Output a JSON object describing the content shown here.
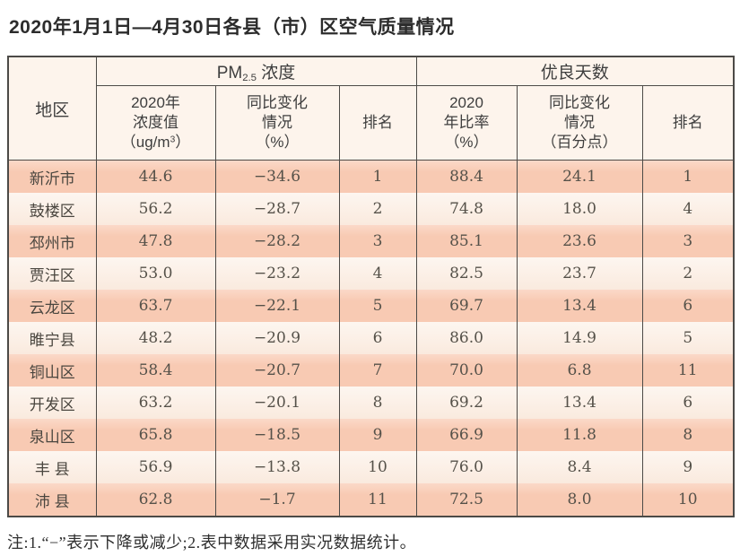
{
  "title": "2020年1月1日—4月30日各县（市）区空气质量情况",
  "colors": {
    "row_odd": "#f8cab3",
    "row_even": "#faeade",
    "header_bg": "#fdf4ec",
    "border": "#4c4a47"
  },
  "table": {
    "region_header": "地区",
    "pm_group": {
      "pre": "PM",
      "sub": "2.5",
      "post": " 浓度"
    },
    "days_group": "优良天数",
    "columns": {
      "pm_value": {
        "l1": "2020年",
        "l2": "浓度值",
        "l3_pre": "（ug/m",
        "l3_sup": "3",
        "l3_post": "）"
      },
      "pm_change": {
        "l1": "同比变化",
        "l2": "情况",
        "l3": "（%）"
      },
      "pm_rank": "排名",
      "days_ratio": {
        "l1": "2020",
        "l2": "年比率",
        "l3": "（%）"
      },
      "days_change": {
        "l1": "同比变化",
        "l2": "情况",
        "l3": "（百分点）"
      },
      "days_rank": "排名"
    },
    "rows": [
      {
        "region": "新沂市",
        "pm_value": "44.6",
        "pm_change": "−34.6",
        "pm_rank": "1",
        "days_ratio": "88.4",
        "days_change": "24.1",
        "days_rank": "1"
      },
      {
        "region": "鼓楼区",
        "pm_value": "56.2",
        "pm_change": "−28.7",
        "pm_rank": "2",
        "days_ratio": "74.8",
        "days_change": "18.0",
        "days_rank": "4"
      },
      {
        "region": "邳州市",
        "pm_value": "47.8",
        "pm_change": "−28.2",
        "pm_rank": "3",
        "days_ratio": "85.1",
        "days_change": "23.6",
        "days_rank": "3"
      },
      {
        "region": "贾汪区",
        "pm_value": "53.0",
        "pm_change": "−23.2",
        "pm_rank": "4",
        "days_ratio": "82.5",
        "days_change": "23.7",
        "days_rank": "2"
      },
      {
        "region": "云龙区",
        "pm_value": "63.7",
        "pm_change": "−22.1",
        "pm_rank": "5",
        "days_ratio": "69.7",
        "days_change": "13.4",
        "days_rank": "6"
      },
      {
        "region": "睢宁县",
        "pm_value": "48.2",
        "pm_change": "−20.9",
        "pm_rank": "6",
        "days_ratio": "86.0",
        "days_change": "14.9",
        "days_rank": "5"
      },
      {
        "region": "铜山区",
        "pm_value": "58.4",
        "pm_change": "−20.7",
        "pm_rank": "7",
        "days_ratio": "70.0",
        "days_change": "6.8",
        "days_rank": "11"
      },
      {
        "region": "开发区",
        "pm_value": "63.2",
        "pm_change": "−20.1",
        "pm_rank": "8",
        "days_ratio": "69.2",
        "days_change": "13.4",
        "days_rank": "6"
      },
      {
        "region": "泉山区",
        "pm_value": "65.8",
        "pm_change": "−18.5",
        "pm_rank": "9",
        "days_ratio": "66.9",
        "days_change": "11.8",
        "days_rank": "8"
      },
      {
        "region": "丰 县",
        "pm_value": "56.9",
        "pm_change": "−13.8",
        "pm_rank": "10",
        "days_ratio": "76.0",
        "days_change": "8.4",
        "days_rank": "9"
      },
      {
        "region": "沛 县",
        "pm_value": "62.8",
        "pm_change": "−1.7",
        "pm_rank": "11",
        "days_ratio": "72.5",
        "days_change": "8.0",
        "days_rank": "10"
      }
    ]
  },
  "note": "注:1.“−”表示下降或减少;2.表中数据采用实况数据统计。"
}
